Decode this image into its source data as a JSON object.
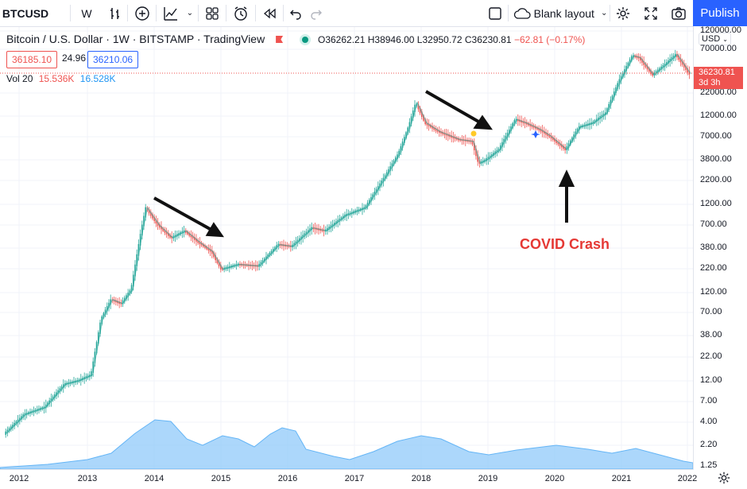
{
  "toolbar": {
    "symbol": "BTCUSD",
    "interval": "W",
    "layout_label": "Blank layout",
    "publish_label": "Publish"
  },
  "legend": {
    "title": "Bitcoin / U.S. Dollar · 1W · BITSTAMP · TradingView",
    "open": "O36262.21",
    "high": "H38946.00",
    "low": "L32950.72",
    "close": "C36230.81",
    "change": "−62.81 (−0.17%)",
    "bid": "36185.10",
    "spread": "24.96",
    "ask": "36210.06",
    "vol_label": "Vol 20",
    "vol_value": "15.536K",
    "vol_ma": "16.528K"
  },
  "axis": {
    "currency": "USD",
    "last_price": "36230.81",
    "countdown": "3d 3h",
    "y_ticks": [
      "120000.00",
      "70000.00",
      "22000.00",
      "12000.00",
      "7000.00",
      "3800.00",
      "2200.00",
      "1200.00",
      "700.00",
      "380.00",
      "220.00",
      "120.00",
      "70.00",
      "38.00",
      "22.00",
      "12.00",
      "7.00",
      "4.00",
      "2.20",
      "1.25"
    ],
    "x_ticks": [
      "2012",
      "2013",
      "2014",
      "2015",
      "2016",
      "2017",
      "2018",
      "2019",
      "2020",
      "2021",
      "2022"
    ]
  },
  "annotation": {
    "covid_label": "COVID Crash"
  },
  "colors": {
    "up": "#26a69a",
    "down": "#ef5350",
    "volume": "#90caf9",
    "accent": "#2962ff"
  },
  "chart_data": {
    "type": "line",
    "scale": "log",
    "x": [
      2011.8,
      2012.1,
      2012.4,
      2012.7,
      2012.9,
      2013.1,
      2013.25,
      2013.4,
      2013.55,
      2013.7,
      2013.85,
      2013.92,
      2014.1,
      2014.3,
      2014.5,
      2014.7,
      2014.9,
      2015.05,
      2015.3,
      2015.6,
      2015.9,
      2016.1,
      2016.4,
      2016.6,
      2016.9,
      2017.2,
      2017.5,
      2017.7,
      2017.85,
      2017.96,
      2018.1,
      2018.3,
      2018.6,
      2018.8,
      2018.9,
      2019.0,
      2019.2,
      2019.45,
      2019.6,
      2019.8,
      2019.95,
      2020.2,
      2020.4,
      2020.6,
      2020.8,
      2021.0,
      2021.2,
      2021.3,
      2021.5,
      2021.7,
      2021.85,
      2022.05
    ],
    "values": [
      3,
      5,
      6,
      11,
      12,
      14,
      60,
      100,
      90,
      130,
      600,
      1100,
      700,
      500,
      600,
      450,
      350,
      220,
      250,
      240,
      420,
      400,
      650,
      600,
      900,
      1100,
      2500,
      4500,
      9000,
      17000,
      10000,
      8000,
      6500,
      6200,
      3500,
      3800,
      5000,
      11000,
      10000,
      8500,
      7200,
      5000,
      9000,
      10000,
      13000,
      30000,
      58000,
      55000,
      35000,
      47000,
      60000,
      36230.81
    ],
    "series_volume_note": "",
    "ylim": [
      1.25,
      120000
    ],
    "xlim": [
      2011.8,
      2022.1
    ]
  }
}
